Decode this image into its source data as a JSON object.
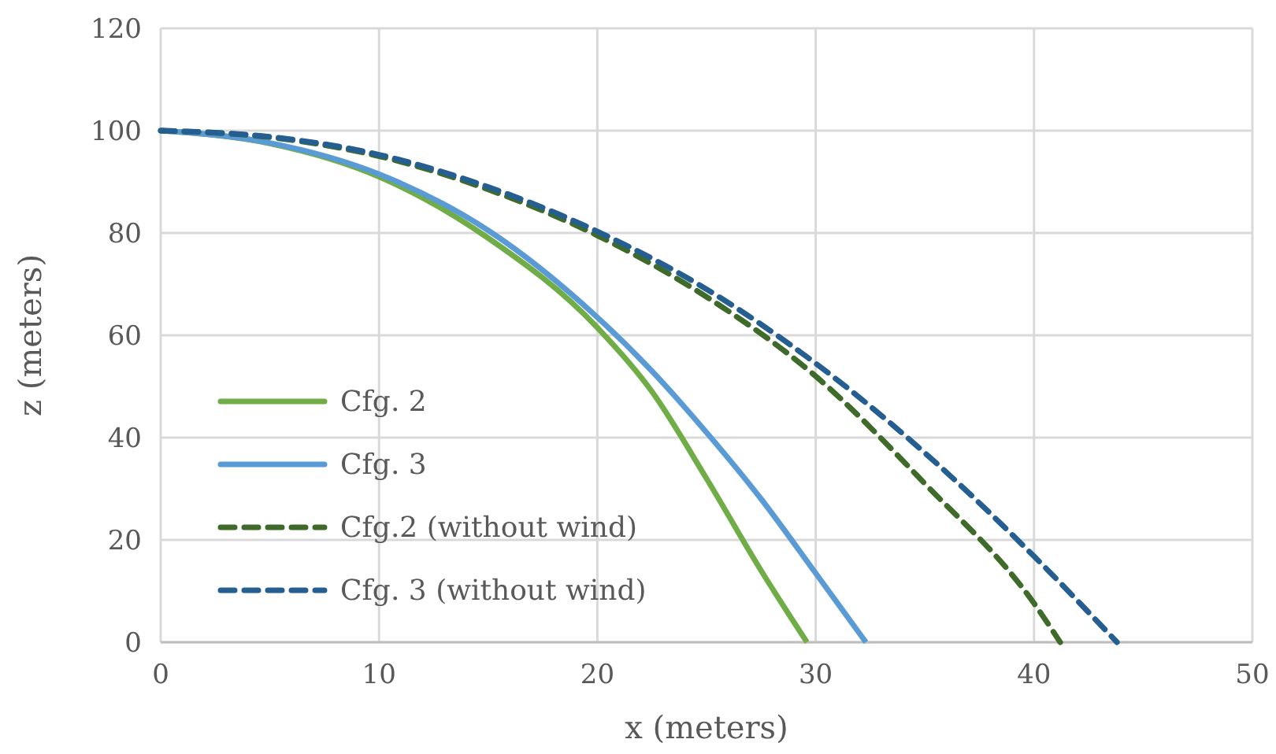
{
  "chart_data": {
    "type": "line",
    "xlabel": "x (meters)",
    "ylabel": "z (meters)",
    "xlim": [
      0,
      50
    ],
    "xticks": [
      0,
      10,
      20,
      30,
      40,
      50
    ],
    "ylim": [
      0,
      120
    ],
    "yticks": [
      0,
      20,
      40,
      60,
      80,
      100,
      120
    ],
    "grid": true,
    "legend": "bottom left",
    "marker": "none",
    "series": [
      {
        "name": "Cfg. 2",
        "color": "#70ad47",
        "line_style": "solid",
        "x": [
          0,
          5,
          10,
          15,
          20,
          22.5,
          25,
          27.5,
          29.6
        ],
        "values": [
          100,
          97.5,
          91,
          79,
          61.5,
          49,
          32,
          14,
          0
        ]
      },
      {
        "name": "Cfg. 3",
        "color": "#5b9bd5",
        "line_style": "solid",
        "x": [
          0,
          5,
          10,
          15,
          20,
          22.5,
          25,
          27.5,
          30,
          32.3
        ],
        "values": [
          100,
          97.6,
          91.5,
          80.5,
          63.5,
          53,
          41,
          28,
          13.5,
          0
        ]
      },
      {
        "name": "Cfg.2 (without wind)",
        "color": "#3f6b2a",
        "line_style": "dashed",
        "x": [
          0,
          5,
          10,
          15,
          20,
          25,
          30,
          35,
          40,
          41.2
        ],
        "values": [
          100,
          98.7,
          95,
          88.5,
          79.5,
          67.5,
          52,
          31,
          7.6,
          0
        ]
      },
      {
        "name": "Cfg. 3 (without wind)",
        "color": "#255e91",
        "line_style": "dashed",
        "x": [
          0,
          5,
          10,
          15,
          20,
          25,
          30,
          35,
          40,
          43.8
        ],
        "values": [
          100,
          98.8,
          95.3,
          89,
          80.3,
          69,
          54.5,
          37,
          16.8,
          0
        ]
      }
    ]
  }
}
